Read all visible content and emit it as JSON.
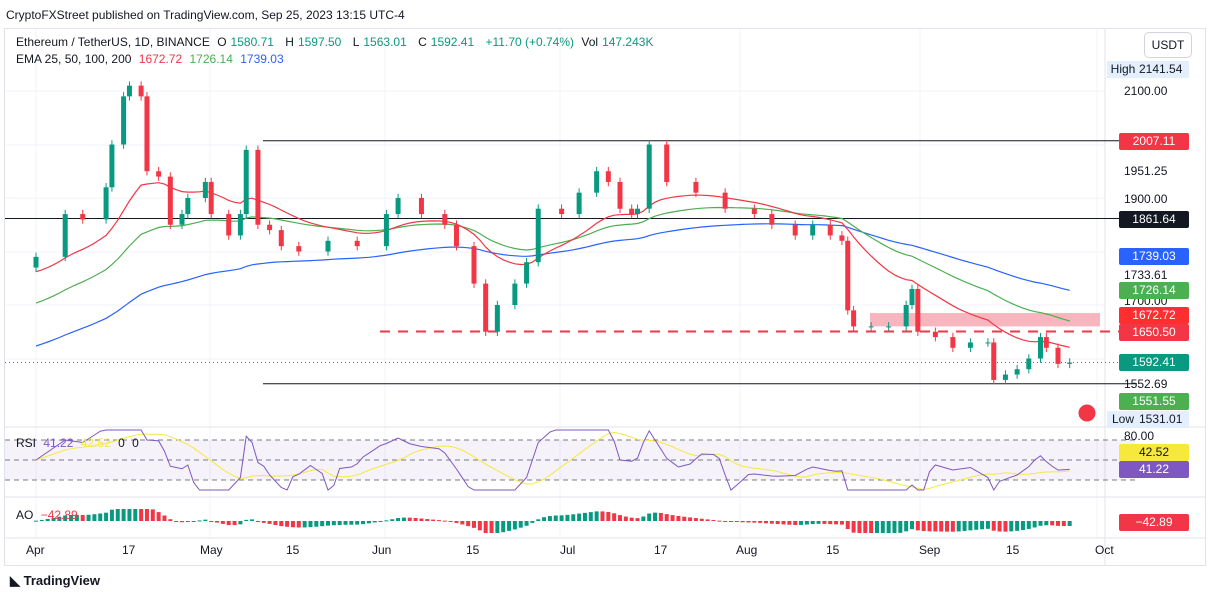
{
  "publisher": "CryptoFXStreet published on TradingView.com, Sep 25, 2023 13:15 UTC-4",
  "legend": {
    "symbol": "Ethereum / TetherUS, 1D, BINANCE",
    "o_label": "O",
    "o": "1580.71",
    "h_label": "H",
    "h": "1597.50",
    "l_label": "L",
    "l": "1563.01",
    "c_label": "C",
    "c": "1592.41",
    "change": "+11.70 (+0.74%)",
    "vol_label": "Vol",
    "vol": "147.243K",
    "ema_label": "EMA 25, 50, 100, 200",
    "ema25": "1672.72",
    "ema50": "1726.14",
    "ema100": "1739.03"
  },
  "currency": "USDT",
  "high": {
    "label": "High",
    "value": "2141.54"
  },
  "low": {
    "label": "Low",
    "value": "1531.01"
  },
  "price_axis": [
    "2100.00",
    "1951.25",
    "1900.00",
    "1733.61",
    "1700.00",
    "1552.69"
  ],
  "price_tags": [
    {
      "value": "2007.11",
      "color": "#f23645"
    },
    {
      "value": "1861.64",
      "color": "#131722"
    },
    {
      "value": "1739.03",
      "color": "#2962ff"
    },
    {
      "value": "1726.14",
      "color": "#4caf50"
    },
    {
      "value": "1672.72",
      "color": "#ff2f2f"
    },
    {
      "value": "1650.50",
      "color": "#f23645"
    },
    {
      "value": "1592.41",
      "color": "#089981"
    },
    {
      "value": "1551.55",
      "color": "#4caf50"
    }
  ],
  "rsi": {
    "label": "RSI",
    "value": "41.22",
    "ma": "42.52",
    "extra1": "0",
    "extra2": "0",
    "axis": "80.00",
    "colors": {
      "rsi": "#7e57c2",
      "ma": "#f7e83c"
    }
  },
  "ao": {
    "label": "AO",
    "value": "−42.89"
  },
  "time_axis": [
    "Apr",
    "17",
    "May",
    "15",
    "Jun",
    "15",
    "Jul",
    "17",
    "Aug",
    "15",
    "Sep",
    "15",
    "Oct"
  ],
  "brand": "TradingView",
  "chart_data": {
    "type": "candlestick",
    "title": "Ethereum / TetherUS, 1D, BINANCE",
    "ylim": [
      1500,
      2160
    ],
    "levels": [
      2007.11,
      1861.64,
      1650.5,
      1552.69
    ],
    "zone": [
      1660,
      1685
    ],
    "colors": {
      "up": "#089981",
      "down": "#f23645",
      "ema25": "#f23645",
      "ema50": "#4caf50",
      "ema100": "#2962ff"
    },
    "dates": [
      "2023-04-01",
      "2023-04-06",
      "2023-04-09",
      "2023-04-13",
      "2023-04-14",
      "2023-04-16",
      "2023-04-17",
      "2023-04-19",
      "2023-04-20",
      "2023-04-22",
      "2023-04-24",
      "2023-04-26",
      "2023-04-27",
      "2023-04-30",
      "2023-05-01",
      "2023-05-04",
      "2023-05-06",
      "2023-05-07",
      "2023-05-09",
      "2023-05-11",
      "2023-05-13",
      "2023-05-16",
      "2023-05-21",
      "2023-05-26",
      "2023-05-31",
      "2023-06-02",
      "2023-06-06",
      "2023-06-10",
      "2023-06-12",
      "2023-06-15",
      "2023-06-17",
      "2023-06-19",
      "2023-06-22",
      "2023-06-24",
      "2023-06-26",
      "2023-06-30",
      "2023-07-03",
      "2023-07-06",
      "2023-07-08",
      "2023-07-10",
      "2023-07-12",
      "2023-07-13",
      "2023-07-15",
      "2023-07-18",
      "2023-07-23",
      "2023-07-28",
      "2023-08-02",
      "2023-08-05",
      "2023-08-09",
      "2023-08-12",
      "2023-08-15",
      "2023-08-17",
      "2023-08-18",
      "2023-08-19",
      "2023-08-22",
      "2023-08-25",
      "2023-08-28",
      "2023-08-29",
      "2023-08-30",
      "2023-09-02",
      "2023-09-05",
      "2023-09-08",
      "2023-09-11",
      "2023-09-12",
      "2023-09-14",
      "2023-09-16",
      "2023-09-18",
      "2023-09-20",
      "2023-09-21",
      "2023-09-23",
      "2023-09-25"
    ],
    "close": [
      1790,
      1870,
      1860,
      1920,
      2000,
      2090,
      2110,
      2090,
      1950,
      1940,
      1850,
      1870,
      1900,
      1930,
      1870,
      1830,
      1870,
      1990,
      1850,
      1840,
      1810,
      1800,
      1820,
      1810,
      1870,
      1900,
      1870,
      1850,
      1810,
      1740,
      1650,
      1700,
      1740,
      1780,
      1880,
      1870,
      1910,
      1950,
      1930,
      1880,
      1870,
      1880,
      2000,
      1930,
      1910,
      1880,
      1870,
      1850,
      1830,
      1850,
      1830,
      1820,
      1690,
      1660,
      1660,
      1660,
      1700,
      1730,
      1650,
      1640,
      1620,
      1630,
      1630,
      1560,
      1570,
      1580,
      1600,
      1640,
      1620,
      1590,
      1592.41
    ]
  }
}
